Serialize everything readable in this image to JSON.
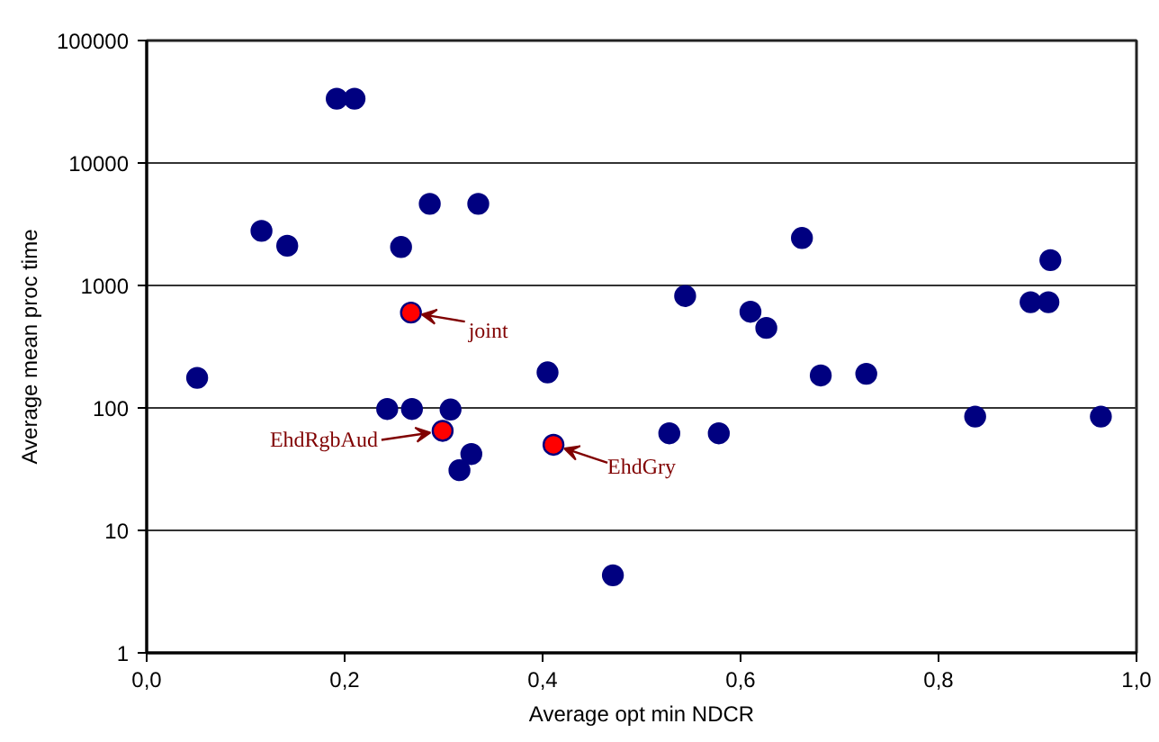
{
  "chart_data": {
    "type": "scatter",
    "xlabel": "Average opt min NDCR",
    "ylabel": "Average mean proc time",
    "x": [
      0.051,
      0.116,
      0.142,
      0.192,
      0.21,
      0.257,
      0.286,
      0.335,
      0.267,
      0.405,
      0.243,
      0.268,
      0.307,
      0.299,
      0.328,
      0.316,
      0.411,
      0.471,
      0.544,
      0.61,
      0.626,
      0.662,
      0.893,
      0.911,
      0.913,
      0.681,
      0.727,
      0.528,
      0.578,
      0.837,
      0.964
    ],
    "values": [
      176,
      2790,
      2110,
      33500,
      33500,
      2060,
      4640,
      4640,
      600,
      195,
      98,
      98,
      97,
      65,
      42,
      31,
      50,
      4.3,
      820,
      610,
      450,
      2440,
      730,
      730,
      1610,
      184,
      190,
      62,
      62,
      85,
      85
    ],
    "colors": [
      "#000080",
      "#000080",
      "#000080",
      "#000080",
      "#000080",
      "#000080",
      "#000080",
      "#000080",
      "#ff0000",
      "#000080",
      "#000080",
      "#000080",
      "#000080",
      "#ff0000",
      "#000080",
      "#000080",
      "#ff0000",
      "#000080",
      "#000080",
      "#000080",
      "#000080",
      "#000080",
      "#000080",
      "#000080",
      "#000080",
      "#000080",
      "#000080",
      "#000080",
      "#000080",
      "#000080",
      "#000080"
    ],
    "log": "y",
    "marker": "circle",
    "grid": "y",
    "xlim": [
      0,
      1
    ],
    "ylim": [
      1,
      100000
    ],
    "xticks": [
      {
        "value": 0,
        "label": "0,0"
      },
      {
        "value": 0.2,
        "label": "0,2"
      },
      {
        "value": 0.4,
        "label": "0,4"
      },
      {
        "value": 0.6,
        "label": "0,6"
      },
      {
        "value": 0.8,
        "label": "0,8"
      },
      {
        "value": 1,
        "label": "1,0"
      }
    ],
    "yticks": [
      1,
      10,
      100,
      1000,
      10000,
      100000
    ],
    "annotations": [
      {
        "text": "joint",
        "x": 0.267,
        "y": 600
      },
      {
        "text": "EhdRgbAud",
        "x": 0.299,
        "y": 65
      },
      {
        "text": "EhdGry",
        "x": 0.411,
        "y": 50
      }
    ]
  }
}
